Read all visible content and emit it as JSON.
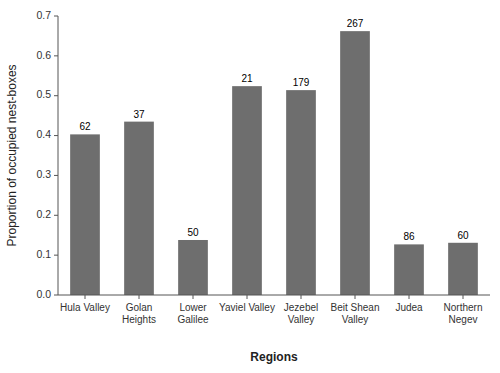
{
  "chart_data": {
    "type": "bar",
    "categories": [
      "Hula Valley",
      "Golan\nHeights",
      "Lower\nGalilee",
      "Yaviel Valley",
      "Jezebel\nValley",
      "Beit Shean\nValley",
      "Judea",
      "Northern\nNegev"
    ],
    "values": [
      0.403,
      0.435,
      0.138,
      0.524,
      0.514,
      0.662,
      0.127,
      0.131
    ],
    "counts": [
      62,
      37,
      50,
      21,
      179,
      267,
      86,
      60
    ],
    "color": "#6e6e6e",
    "ylabel": "Proportion of occupied nest-boxes",
    "xlabel": "Regions",
    "ylim": [
      0,
      0.7
    ],
    "yticks": [
      {
        "value": 0,
        "label": "0.0"
      },
      0.1,
      0.2,
      0.3,
      0.4,
      0.5,
      0.6,
      0.7
    ],
    "grid": false
  }
}
